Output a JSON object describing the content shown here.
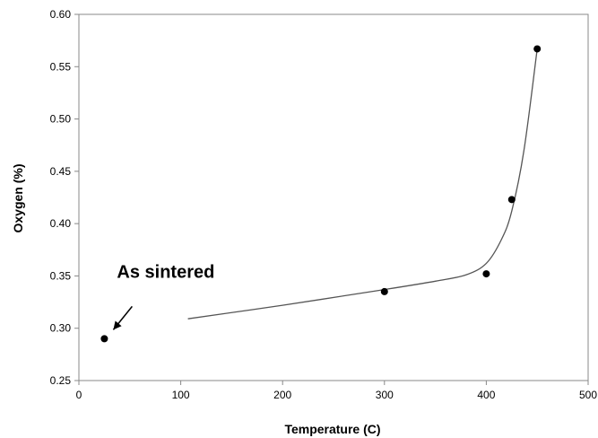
{
  "chart_data": {
    "type": "scatter",
    "title": "",
    "xlabel": "Temperature (C)",
    "ylabel": "Oxygen (%)",
    "xlim": [
      0,
      500
    ],
    "ylim": [
      0.25,
      0.6
    ],
    "x_ticks": [
      0,
      100,
      200,
      300,
      400,
      500
    ],
    "x_tick_labels": [
      "0",
      "100",
      "200",
      "300",
      "400",
      "500"
    ],
    "y_ticks": [
      0.25,
      0.3,
      0.35,
      0.4,
      0.45,
      0.5,
      0.55,
      0.6
    ],
    "y_tick_labels": [
      "0.25",
      "0.30",
      "0.35",
      "0.40",
      "0.45",
      "0.50",
      "0.55",
      "0.60"
    ],
    "grid": false,
    "legend": "none",
    "series": [
      {
        "marker": "circle",
        "color": "#000000",
        "points": [
          {
            "x": 25,
            "y": 0.29
          },
          {
            "x": 300,
            "y": 0.335
          },
          {
            "x": 400,
            "y": 0.352
          },
          {
            "x": 425,
            "y": 0.423
          },
          {
            "x": 450,
            "y": 0.567
          }
        ]
      }
    ],
    "trend_line": {
      "color": "#555555",
      "points": [
        {
          "x": 107,
          "y": 0.309
        },
        {
          "x": 200,
          "y": 0.322
        },
        {
          "x": 300,
          "y": 0.337
        },
        {
          "x": 350,
          "y": 0.345
        },
        {
          "x": 380,
          "y": 0.351
        },
        {
          "x": 400,
          "y": 0.362
        },
        {
          "x": 415,
          "y": 0.385
        },
        {
          "x": 425,
          "y": 0.412
        },
        {
          "x": 437,
          "y": 0.47
        },
        {
          "x": 450,
          "y": 0.567
        }
      ]
    },
    "annotations": [
      {
        "text": "As sintered",
        "target": {
          "x": 25,
          "y": 0.29
        }
      }
    ]
  }
}
